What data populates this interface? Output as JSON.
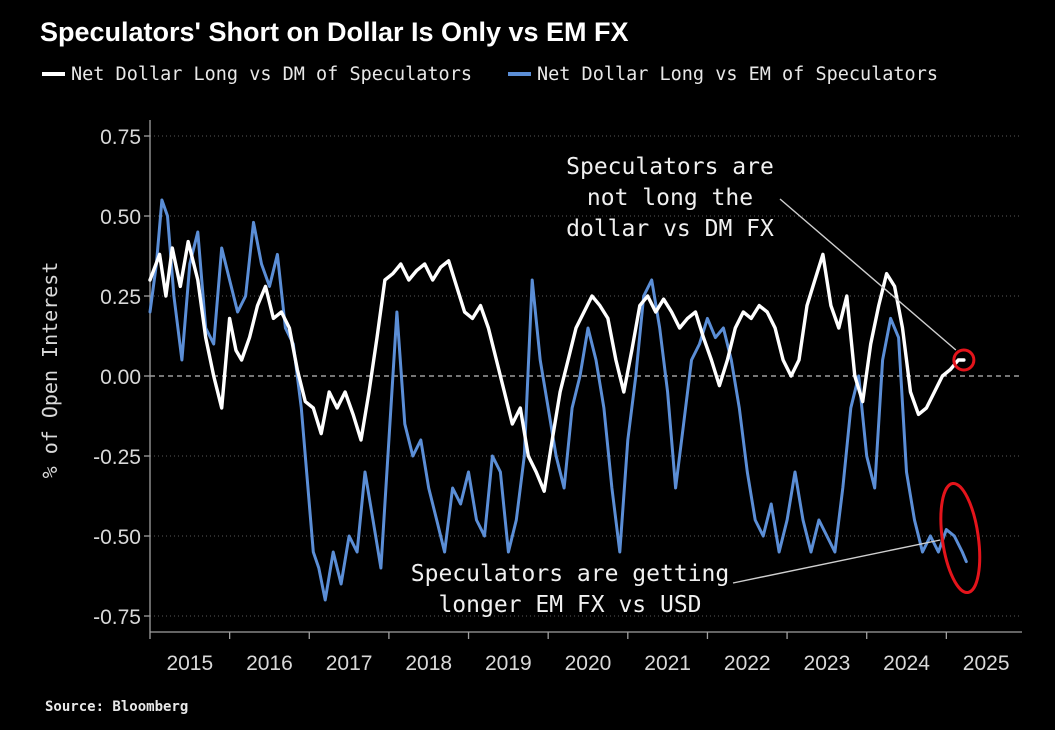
{
  "chart_data": {
    "type": "line",
    "title": "Speculators' Short on Dollar Is Only vs EM FX",
    "ylabel": "% of Open Interest",
    "xlabel": "",
    "ylim": [
      -0.8,
      0.8
    ],
    "y_ticks": [
      0.75,
      0.5,
      0.25,
      0.0,
      -0.25,
      -0.5,
      -0.75
    ],
    "y_tick_labels": [
      "0.75",
      "0.50",
      "0.25",
      "0.00",
      "-0.25",
      "-0.50",
      "-0.75"
    ],
    "xlim": [
      2015.0,
      2025.95
    ],
    "x_ticks": [
      2015,
      2016,
      2017,
      2018,
      2019,
      2020,
      2021,
      2022,
      2023,
      2024,
      2025
    ],
    "x_tick_labels": [
      "2015",
      "2016",
      "2017",
      "2018",
      "2019",
      "2020",
      "2021",
      "2022",
      "2023",
      "2024",
      "2025"
    ],
    "legend_position": "top-left",
    "grid": true,
    "series": [
      {
        "name": "Net Dollar Long vs DM of Speculators",
        "color": "#ffffff",
        "x": [
          2015.0,
          2015.12,
          2015.2,
          2015.28,
          2015.38,
          2015.48,
          2015.6,
          2015.7,
          2015.8,
          2015.9,
          2016.0,
          2016.08,
          2016.15,
          2016.25,
          2016.35,
          2016.45,
          2016.55,
          2016.65,
          2016.75,
          2016.85,
          2016.95,
          2017.05,
          2017.15,
          2017.25,
          2017.35,
          2017.45,
          2017.55,
          2017.65,
          2017.75,
          2017.85,
          2017.95,
          2018.05,
          2018.15,
          2018.25,
          2018.35,
          2018.45,
          2018.55,
          2018.65,
          2018.75,
          2018.85,
          2018.95,
          2019.05,
          2019.15,
          2019.25,
          2019.35,
          2019.45,
          2019.55,
          2019.65,
          2019.75,
          2019.85,
          2019.95,
          2020.05,
          2020.15,
          2020.25,
          2020.35,
          2020.45,
          2020.55,
          2020.65,
          2020.75,
          2020.85,
          2020.95,
          2021.05,
          2021.15,
          2021.25,
          2021.35,
          2021.45,
          2021.55,
          2021.65,
          2021.75,
          2021.85,
          2021.95,
          2022.05,
          2022.15,
          2022.25,
          2022.35,
          2022.45,
          2022.55,
          2022.65,
          2022.75,
          2022.85,
          2022.95,
          2023.05,
          2023.15,
          2023.25,
          2023.35,
          2023.45,
          2023.55,
          2023.65,
          2023.75,
          2023.85,
          2023.95,
          2024.05,
          2024.15,
          2024.25,
          2024.35,
          2024.45,
          2024.55,
          2024.65,
          2024.75,
          2024.85,
          2024.95,
          2025.05,
          2025.15,
          2025.22
        ],
        "values": [
          0.3,
          0.38,
          0.25,
          0.4,
          0.28,
          0.42,
          0.3,
          0.12,
          0.0,
          -0.1,
          0.18,
          0.08,
          0.05,
          0.12,
          0.22,
          0.28,
          0.18,
          0.2,
          0.15,
          0.02,
          -0.08,
          -0.1,
          -0.18,
          -0.05,
          -0.1,
          -0.05,
          -0.12,
          -0.2,
          -0.05,
          0.12,
          0.3,
          0.32,
          0.35,
          0.3,
          0.33,
          0.35,
          0.3,
          0.34,
          0.36,
          0.28,
          0.2,
          0.18,
          0.22,
          0.15,
          0.05,
          -0.05,
          -0.15,
          -0.1,
          -0.25,
          -0.3,
          -0.36,
          -0.2,
          -0.05,
          0.05,
          0.15,
          0.2,
          0.25,
          0.22,
          0.18,
          0.05,
          -0.05,
          0.08,
          0.22,
          0.25,
          0.2,
          0.24,
          0.2,
          0.15,
          0.18,
          0.2,
          0.12,
          0.05,
          -0.03,
          0.05,
          0.15,
          0.2,
          0.18,
          0.22,
          0.2,
          0.15,
          0.05,
          0.0,
          0.05,
          0.22,
          0.3,
          0.38,
          0.22,
          0.15,
          0.25,
          0.0,
          -0.08,
          0.1,
          0.22,
          0.32,
          0.28,
          0.15,
          -0.05,
          -0.12,
          -0.1,
          -0.05,
          0.0,
          0.02,
          0.05,
          0.05
        ]
      },
      {
        "name": "Net Dollar Long vs EM of Speculators",
        "color": "#5b8ed6",
        "x": [
          2015.0,
          2015.08,
          2015.15,
          2015.22,
          2015.3,
          2015.4,
          2015.5,
          2015.6,
          2015.7,
          2015.8,
          2015.9,
          2016.0,
          2016.1,
          2016.2,
          2016.3,
          2016.4,
          2016.5,
          2016.6,
          2016.7,
          2016.8,
          2016.9,
          2017.0,
          2017.05,
          2017.12,
          2017.2,
          2017.3,
          2017.4,
          2017.5,
          2017.6,
          2017.7,
          2017.8,
          2017.9,
          2018.0,
          2018.1,
          2018.2,
          2018.3,
          2018.4,
          2018.5,
          2018.6,
          2018.7,
          2018.8,
          2018.9,
          2019.0,
          2019.1,
          2019.2,
          2019.3,
          2019.4,
          2019.5,
          2019.6,
          2019.7,
          2019.8,
          2019.9,
          2020.0,
          2020.1,
          2020.2,
          2020.3,
          2020.4,
          2020.5,
          2020.6,
          2020.7,
          2020.8,
          2020.9,
          2021.0,
          2021.1,
          2021.2,
          2021.3,
          2021.4,
          2021.5,
          2021.6,
          2021.7,
          2021.8,
          2021.9,
          2022.0,
          2022.1,
          2022.2,
          2022.3,
          2022.4,
          2022.5,
          2022.6,
          2022.7,
          2022.8,
          2022.9,
          2023.0,
          2023.1,
          2023.2,
          2023.3,
          2023.4,
          2023.5,
          2023.6,
          2023.7,
          2023.8,
          2023.9,
          2024.0,
          2024.1,
          2024.2,
          2024.3,
          2024.4,
          2024.5,
          2024.6,
          2024.7,
          2024.8,
          2024.9,
          2025.0,
          2025.1,
          2025.2,
          2025.25
        ],
        "values": [
          0.2,
          0.35,
          0.55,
          0.5,
          0.25,
          0.05,
          0.35,
          0.45,
          0.15,
          0.1,
          0.4,
          0.3,
          0.2,
          0.25,
          0.48,
          0.35,
          0.28,
          0.38,
          0.15,
          0.1,
          -0.1,
          -0.4,
          -0.55,
          -0.6,
          -0.7,
          -0.55,
          -0.65,
          -0.5,
          -0.55,
          -0.3,
          -0.45,
          -0.6,
          -0.2,
          0.2,
          -0.15,
          -0.25,
          -0.2,
          -0.35,
          -0.45,
          -0.55,
          -0.35,
          -0.4,
          -0.3,
          -0.45,
          -0.5,
          -0.25,
          -0.3,
          -0.55,
          -0.45,
          -0.25,
          0.3,
          0.05,
          -0.1,
          -0.25,
          -0.35,
          -0.1,
          0.0,
          0.15,
          0.05,
          -0.1,
          -0.35,
          -0.55,
          -0.2,
          0.0,
          0.25,
          0.3,
          0.15,
          -0.05,
          -0.35,
          -0.15,
          0.05,
          0.1,
          0.18,
          0.12,
          0.15,
          0.05,
          -0.1,
          -0.3,
          -0.45,
          -0.5,
          -0.4,
          -0.55,
          -0.45,
          -0.3,
          -0.45,
          -0.55,
          -0.45,
          -0.5,
          -0.55,
          -0.35,
          -0.1,
          0.0,
          -0.25,
          -0.35,
          0.05,
          0.18,
          0.12,
          -0.3,
          -0.45,
          -0.55,
          -0.5,
          -0.55,
          -0.48,
          -0.5,
          -0.55,
          -0.58
        ]
      }
    ],
    "annotations": [
      {
        "lines": [
          "Speculators are",
          "not long the",
          "dollar vs DM FX"
        ],
        "target_series": "Net Dollar Long vs DM of Speculators",
        "target_x": 2025.22,
        "target_y": 0.05
      },
      {
        "lines": [
          "Speculators are getting",
          "longer EM FX vs USD"
        ],
        "target_series": "Net Dollar Long vs EM of Speculators",
        "target_x": 2025.15,
        "target_y": -0.5
      }
    ]
  },
  "highlight_color": "#e4141b",
  "source": "Source: Bloomberg"
}
